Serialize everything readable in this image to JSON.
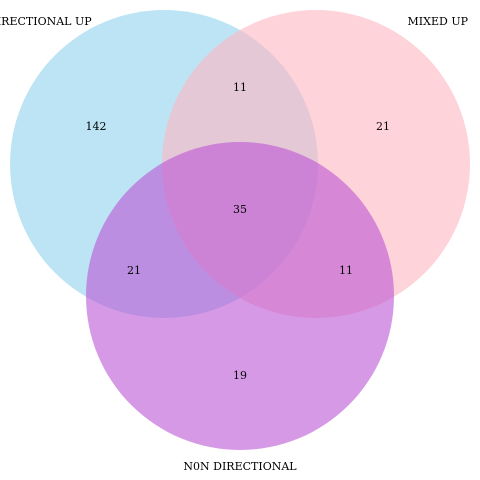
{
  "colors": {
    "directional_up": "#87ceeb",
    "mixed_up": "#ffb6c1",
    "non_directional": "#ba55d3"
  },
  "sets": {
    "directional_up": {
      "label": "DIRECTIONAL UP"
    },
    "mixed_up": {
      "label": "MIXED UP"
    },
    "non_directional": {
      "label": "N0N DIRECTIONAL"
    }
  },
  "regions": {
    "directional_up_only": "142",
    "mixed_up_only": "21",
    "non_directional_only": "19",
    "directional_up_and_mixed_up": "11",
    "directional_up_and_non_directional": "21",
    "mixed_up_and_non_directional": "11",
    "all_three": "35"
  }
}
